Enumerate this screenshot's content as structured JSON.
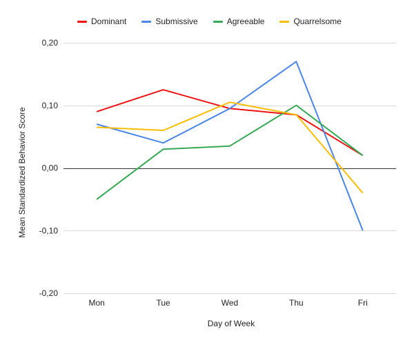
{
  "chart_data": {
    "type": "line",
    "categories": [
      "Mon",
      "Tue",
      "Wed",
      "Thu",
      "Fri"
    ],
    "series": [
      {
        "name": "Dominant",
        "color": "#ee1111",
        "values": [
          0.09,
          0.125,
          0.095,
          0.085,
          0.02
        ]
      },
      {
        "name": "Submissive",
        "color": "#4a86e8",
        "values": [
          0.07,
          0.04,
          0.095,
          0.17,
          -0.1
        ]
      },
      {
        "name": "Agreeable",
        "color": "#34a853",
        "values": [
          -0.05,
          0.03,
          0.035,
          0.1,
          0.02
        ]
      },
      {
        "name": "Quarrelsome",
        "color": "#fbbc04",
        "values": [
          0.065,
          0.06,
          0.105,
          0.085,
          -0.04
        ]
      }
    ],
    "title": "",
    "xlabel": "Day of Week",
    "ylabel": "Mean Standardized Behavior Score",
    "ylim": [
      -0.2,
      0.2
    ],
    "yticks": [
      0.2,
      0.1,
      0.0,
      -0.1,
      -0.2
    ],
    "ytick_labels": [
      "0,20",
      "0,10",
      "0,00",
      "-0,10",
      "-0,20"
    ],
    "grid": true,
    "legend_position": "top"
  }
}
